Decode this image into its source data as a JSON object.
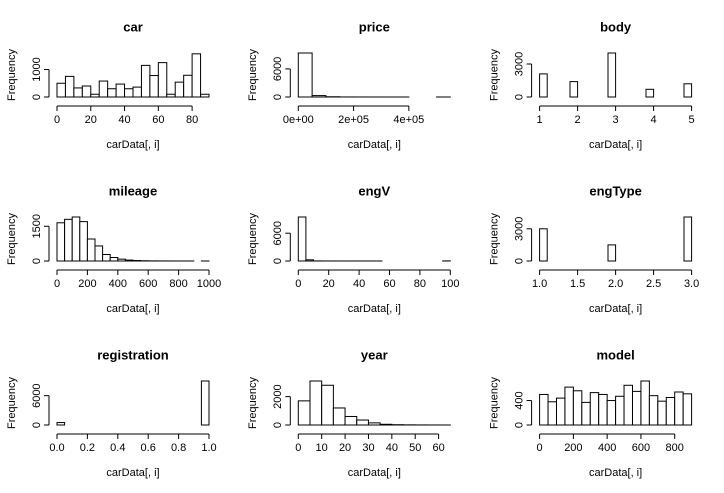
{
  "chart_data": [
    {
      "type": "histogram",
      "title": "car",
      "xlabel": "carData[, i]",
      "ylabel": "Frequency",
      "bins": [
        0,
        5,
        10,
        15,
        20,
        25,
        30,
        35,
        40,
        45,
        50,
        55,
        60,
        65,
        70,
        75,
        80,
        85,
        90
      ],
      "counts": [
        500,
        750,
        330,
        400,
        100,
        580,
        300,
        470,
        300,
        360,
        1150,
        780,
        1250,
        100,
        540,
        790,
        1570,
        100
      ],
      "xlim": [
        0,
        90
      ],
      "xticks": [
        0,
        20,
        40,
        60,
        80
      ],
      "ylim": [
        0,
        1600
      ],
      "yticks": [
        0,
        1000
      ]
    },
    {
      "type": "histogram",
      "title": "price",
      "xlabel": "carData[, i]",
      "ylabel": "Frequency",
      "bins": [
        0,
        50000,
        100000,
        150000,
        200000,
        250000,
        300000,
        350000,
        400000,
        450000,
        500000,
        550000
      ],
      "counts": [
        9400,
        300,
        50,
        10,
        5,
        2,
        1,
        1,
        0,
        0,
        1
      ],
      "xlim": [
        0,
        550000
      ],
      "xticks": [
        {
          "value": 0,
          "label": "0e+00"
        },
        {
          "value": 200000,
          "label": "2e+05"
        },
        {
          "value": 400000,
          "label": "4e+05"
        }
      ],
      "ylim": [
        0,
        9400
      ],
      "yticks": [
        0,
        6000
      ]
    },
    {
      "type": "histogram",
      "title": "body",
      "xlabel": "carData[, i]",
      "ylabel": "Frequency",
      "bins": [
        1,
        1.2,
        1.4,
        1.6,
        1.8,
        2,
        2.2,
        2.4,
        2.6,
        2.8,
        3,
        3.2,
        3.4,
        3.6,
        3.8,
        4,
        4.2,
        4.4,
        4.6,
        4.8,
        5
      ],
      "counts": [
        2100,
        0,
        0,
        0,
        1400,
        0,
        0,
        0,
        0,
        4000,
        0,
        0,
        0,
        0,
        700,
        0,
        0,
        0,
        0,
        1200
      ],
      "xlim": [
        1,
        5
      ],
      "xticks": [
        1,
        2,
        3,
        4,
        5
      ],
      "ylim": [
        0,
        4000
      ],
      "yticks": [
        0,
        3000
      ]
    },
    {
      "type": "histogram",
      "title": "mileage",
      "xlabel": "carData[, i]",
      "ylabel": "Frequency",
      "bins": [
        0,
        50,
        100,
        150,
        200,
        250,
        300,
        350,
        400,
        450,
        500,
        550,
        600,
        650,
        700,
        750,
        800,
        850,
        900,
        950,
        1000
      ],
      "counts": [
        1650,
        1800,
        1900,
        1700,
        950,
        650,
        280,
        150,
        80,
        40,
        20,
        10,
        5,
        3,
        2,
        1,
        1,
        1,
        0,
        1
      ],
      "xlim": [
        0,
        1000
      ],
      "xticks": [
        0,
        200,
        400,
        600,
        800,
        1000
      ],
      "ylim": [
        0,
        1900
      ],
      "yticks": [
        0,
        1500
      ]
    },
    {
      "type": "histogram",
      "title": "engV",
      "xlabel": "carData[, i]",
      "ylabel": "Frequency",
      "bins": [
        0,
        5,
        10,
        15,
        20,
        25,
        30,
        35,
        40,
        45,
        50,
        55,
        60,
        65,
        70,
        75,
        80,
        85,
        90,
        95,
        100
      ],
      "counts": [
        9500,
        250,
        20,
        10,
        5,
        3,
        2,
        1,
        1,
        1,
        1,
        0,
        0,
        0,
        0,
        0,
        0,
        0,
        0,
        20
      ],
      "xlim": [
        0,
        100
      ],
      "xticks": [
        0,
        20,
        40,
        60,
        80,
        100
      ],
      "ylim": [
        0,
        9500
      ],
      "yticks": [
        0,
        6000
      ]
    },
    {
      "type": "histogram",
      "title": "engType",
      "xlabel": "carData[, i]",
      "ylabel": "Frequency",
      "bins": [
        1,
        1.1,
        1.2,
        1.3,
        1.4,
        1.5,
        1.6,
        1.7,
        1.8,
        1.9,
        2,
        2.1,
        2.2,
        2.3,
        2.4,
        2.5,
        2.6,
        2.7,
        2.8,
        2.9,
        3
      ],
      "counts": [
        3000,
        0,
        0,
        0,
        0,
        0,
        0,
        0,
        0,
        1500,
        0,
        0,
        0,
        0,
        0,
        0,
        0,
        0,
        0,
        4100
      ],
      "xlim": [
        1,
        3
      ],
      "xticks": [
        {
          "value": 1,
          "label": "1.0"
        },
        {
          "value": 1.5,
          "label": "1.5"
        },
        {
          "value": 2,
          "label": "2.0"
        },
        {
          "value": 2.5,
          "label": "2.5"
        },
        {
          "value": 3,
          "label": "3.0"
        }
      ],
      "ylim": [
        0,
        4100
      ],
      "yticks": [
        0,
        3000
      ]
    },
    {
      "type": "histogram",
      "title": "registration",
      "xlabel": "carData[, i]",
      "ylabel": "Frequency",
      "bins": [
        0,
        0.05,
        0.1,
        0.15,
        0.2,
        0.25,
        0.3,
        0.35,
        0.4,
        0.45,
        0.5,
        0.55,
        0.6,
        0.65,
        0.7,
        0.75,
        0.8,
        0.85,
        0.9,
        0.95,
        1
      ],
      "counts": [
        500,
        0,
        0,
        0,
        0,
        0,
        0,
        0,
        0,
        0,
        0,
        0,
        0,
        0,
        0,
        0,
        0,
        0,
        0,
        9000
      ],
      "xlim": [
        0,
        1
      ],
      "xticks": [
        {
          "value": 0,
          "label": "0.0"
        },
        {
          "value": 0.2,
          "label": "0.2"
        },
        {
          "value": 0.4,
          "label": "0.4"
        },
        {
          "value": 0.6,
          "label": "0.6"
        },
        {
          "value": 0.8,
          "label": "0.8"
        },
        {
          "value": 1,
          "label": "1.0"
        }
      ],
      "ylim": [
        0,
        9000
      ],
      "yticks": [
        0,
        6000
      ]
    },
    {
      "type": "histogram",
      "title": "year",
      "xlabel": "carData[, i]",
      "ylabel": "Frequency",
      "bins": [
        0,
        5,
        10,
        15,
        20,
        25,
        30,
        35,
        40,
        45,
        50,
        55,
        60,
        65
      ],
      "counts": [
        1700,
        3100,
        2800,
        1200,
        600,
        350,
        150,
        50,
        20,
        10,
        5,
        2,
        1
      ],
      "xlim": [
        0,
        65
      ],
      "xticks": [
        0,
        10,
        20,
        30,
        40,
        50,
        60
      ],
      "ylim": [
        0,
        3100
      ],
      "yticks": [
        0,
        2000
      ]
    },
    {
      "type": "histogram",
      "title": "model",
      "xlabel": "carData[, i]",
      "ylabel": "Frequency",
      "bins": [
        0,
        50,
        100,
        150,
        200,
        250,
        300,
        350,
        400,
        450,
        500,
        550,
        600,
        650,
        700,
        750,
        800,
        850,
        900
      ],
      "counts": [
        500,
        380,
        440,
        620,
        560,
        370,
        530,
        500,
        400,
        470,
        650,
        550,
        720,
        480,
        390,
        450,
        540,
        510
      ],
      "xlim": [
        0,
        900
      ],
      "xticks": [
        0,
        200,
        400,
        600,
        800
      ],
      "ylim": [
        0,
        720
      ],
      "yticks": [
        0,
        400
      ]
    }
  ]
}
